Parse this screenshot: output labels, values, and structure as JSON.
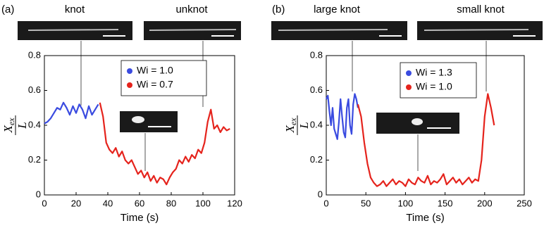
{
  "chart_data": [
    {
      "type": "line",
      "panel_label": "(a)",
      "image_labels": [
        "knot",
        "unknot"
      ],
      "xlabel": "Time (s)",
      "ylabel": {
        "numerator": "X",
        "subscript": "ex",
        "denominator": "L"
      },
      "xlim": [
        0,
        120
      ],
      "xticks": [
        0,
        20,
        40,
        60,
        80,
        100,
        120
      ],
      "ylim": [
        0,
        0.8
      ],
      "yticks": [
        0,
        0.2,
        0.4,
        0.6,
        0.8
      ],
      "series": [
        {
          "name": "Wi = 1.0",
          "color": "#3a4be0",
          "x": [
            0,
            2,
            4,
            6,
            8,
            10,
            12,
            14,
            16,
            18,
            20,
            22,
            24,
            26,
            28,
            30,
            32,
            34
          ],
          "values": [
            0.41,
            0.42,
            0.44,
            0.47,
            0.5,
            0.49,
            0.53,
            0.5,
            0.46,
            0.51,
            0.47,
            0.52,
            0.49,
            0.44,
            0.51,
            0.46,
            0.49,
            0.52
          ]
        },
        {
          "name": "Wi = 0.7",
          "color": "#e5231c",
          "x": [
            35,
            37,
            39,
            41,
            43,
            45,
            47,
            49,
            51,
            53,
            55,
            57,
            59,
            61,
            63,
            65,
            67,
            69,
            71,
            73,
            75,
            77,
            79,
            81,
            83,
            85,
            87,
            89,
            91,
            93,
            95,
            97,
            99,
            101,
            103,
            105,
            107,
            109,
            111,
            113,
            115,
            117
          ],
          "values": [
            0.53,
            0.45,
            0.3,
            0.26,
            0.24,
            0.27,
            0.22,
            0.25,
            0.2,
            0.18,
            0.2,
            0.16,
            0.12,
            0.14,
            0.1,
            0.13,
            0.08,
            0.11,
            0.07,
            0.1,
            0.09,
            0.06,
            0.1,
            0.13,
            0.15,
            0.2,
            0.18,
            0.22,
            0.19,
            0.23,
            0.21,
            0.26,
            0.24,
            0.3,
            0.42,
            0.49,
            0.38,
            0.4,
            0.36,
            0.39,
            0.37,
            0.38
          ]
        }
      ]
    },
    {
      "type": "line",
      "panel_label": "(b)",
      "image_labels": [
        "large knot",
        "small knot"
      ],
      "xlabel": "Time (s)",
      "ylabel": {
        "numerator": "X",
        "subscript": "ex",
        "denominator": "L"
      },
      "xlim": [
        0,
        250
      ],
      "xticks": [
        0,
        50,
        100,
        150,
        200,
        250
      ],
      "ylim": [
        0,
        0.8
      ],
      "yticks": [
        0,
        0.2,
        0.4,
        0.6,
        0.8
      ],
      "series": [
        {
          "name": "Wi = 1.3",
          "color": "#3a4be0",
          "x": [
            0,
            2,
            4,
            6,
            8,
            10,
            12,
            14,
            16,
            18,
            20,
            22,
            24,
            26,
            28,
            30,
            32,
            34,
            36,
            38,
            40
          ],
          "values": [
            0.55,
            0.57,
            0.48,
            0.4,
            0.5,
            0.38,
            0.35,
            0.32,
            0.42,
            0.55,
            0.45,
            0.36,
            0.33,
            0.5,
            0.55,
            0.4,
            0.35,
            0.52,
            0.58,
            0.55,
            0.5
          ]
        },
        {
          "name": "Wi = 1.0",
          "color": "#e5231c",
          "x": [
            40,
            44,
            48,
            52,
            56,
            60,
            64,
            68,
            72,
            76,
            80,
            84,
            88,
            92,
            96,
            100,
            104,
            108,
            112,
            116,
            120,
            124,
            128,
            132,
            136,
            140,
            144,
            148,
            152,
            156,
            160,
            164,
            168,
            172,
            176,
            180,
            184,
            188,
            192,
            196,
            200,
            204,
            208,
            212
          ],
          "values": [
            0.52,
            0.45,
            0.3,
            0.18,
            0.1,
            0.07,
            0.05,
            0.06,
            0.08,
            0.05,
            0.07,
            0.09,
            0.06,
            0.08,
            0.07,
            0.05,
            0.09,
            0.07,
            0.06,
            0.1,
            0.08,
            0.07,
            0.11,
            0.06,
            0.08,
            0.07,
            0.09,
            0.12,
            0.06,
            0.08,
            0.1,
            0.07,
            0.09,
            0.06,
            0.08,
            0.1,
            0.07,
            0.09,
            0.08,
            0.2,
            0.45,
            0.58,
            0.5,
            0.4
          ]
        }
      ]
    }
  ]
}
